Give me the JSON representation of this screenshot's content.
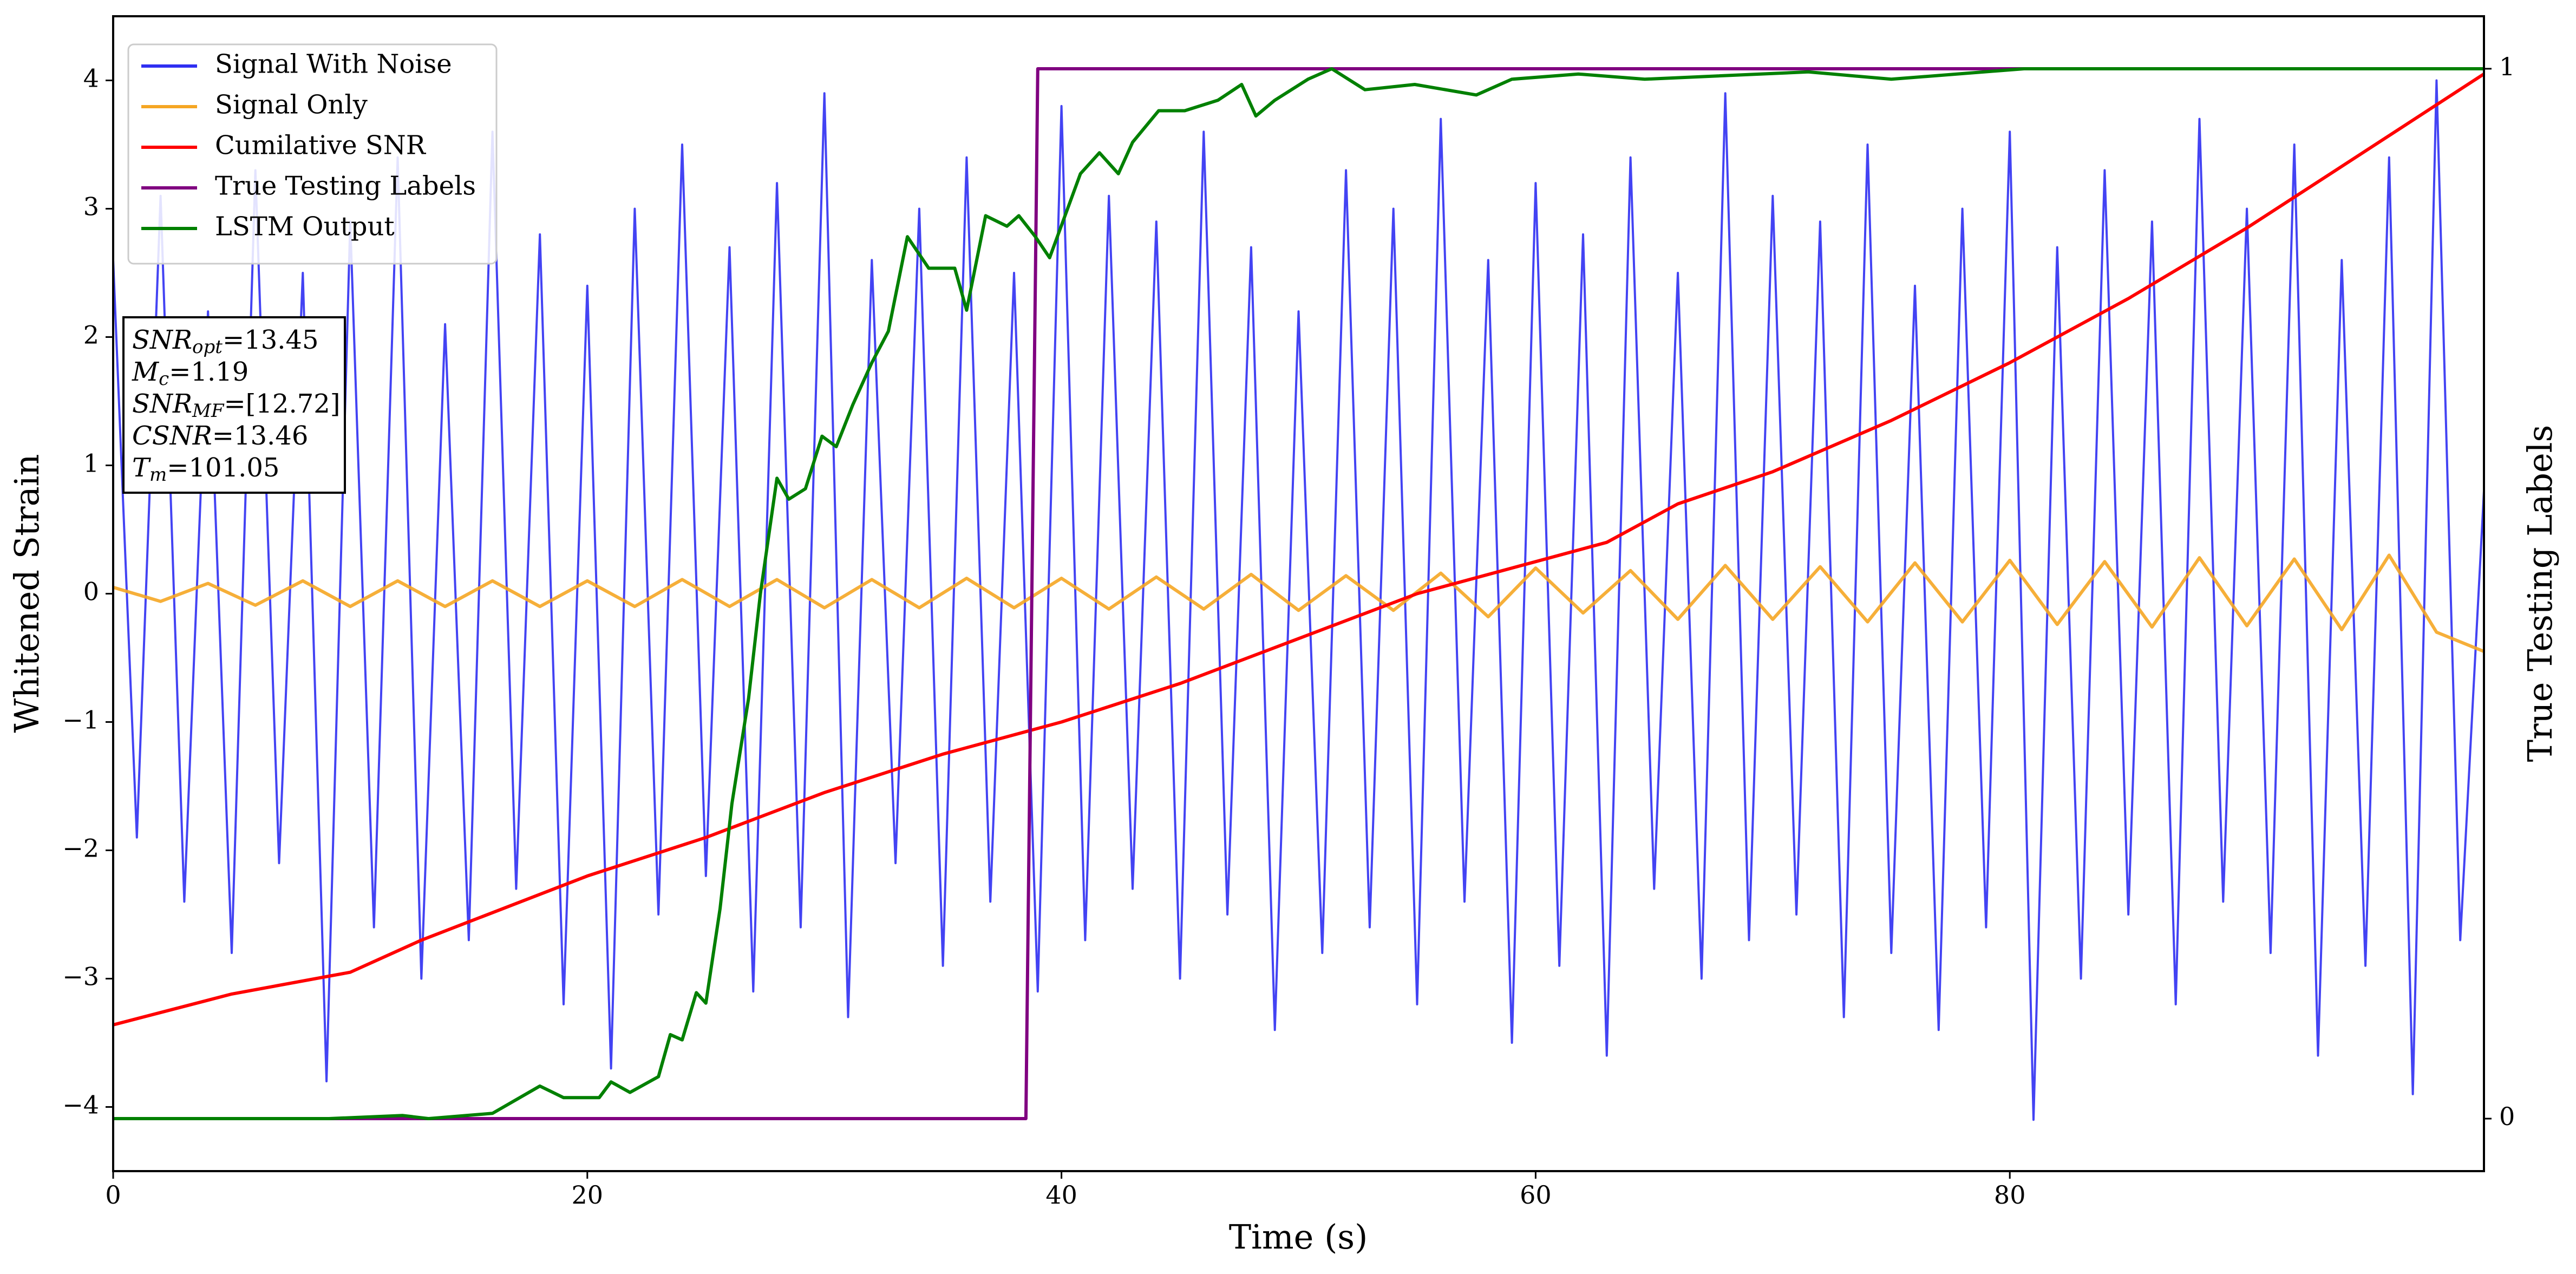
{
  "chart_data": {
    "type": "line",
    "xlabel": "Time (s)",
    "ylabel": "Whitened Strain",
    "y2label": "True Testing Labels",
    "xlim": [
      0,
      100
    ],
    "xticks": [
      0,
      20,
      40,
      60,
      80
    ],
    "ylim": [
      -4.5,
      4.5
    ],
    "yticks": [
      {
        "value": -4,
        "label": "−4"
      },
      {
        "value": -3,
        "label": "−3"
      },
      {
        "value": -2,
        "label": "−2"
      },
      {
        "value": -1,
        "label": "−1"
      },
      0,
      1,
      2,
      3,
      4
    ],
    "y2lim": [
      -0.05,
      1.05
    ],
    "y2ticks": [
      0,
      1
    ],
    "legend": "upper left",
    "annotations": [
      {
        "label": "SNR",
        "subscript": "opt",
        "text": "=13.45"
      },
      {
        "label": "M",
        "subscript": "c",
        "text": "=1.19"
      },
      {
        "label": "SNR",
        "subscript": "MF",
        "text": "=[12.72]"
      },
      {
        "label": "CSNR",
        "subscript": null,
        "text": "=13.46"
      },
      {
        "label": "T",
        "subscript": "m",
        "text": "=101.05"
      }
    ],
    "series": [
      {
        "name": "Signal With Noise",
        "color": "#2f2ff2",
        "axis": "y",
        "x": [
          0,
          1,
          2,
          3,
          4,
          5,
          6,
          7,
          8,
          9,
          10,
          11,
          12,
          13,
          14,
          15,
          16,
          17,
          18,
          19,
          20,
          21,
          22,
          23,
          24,
          25,
          26,
          27,
          28,
          29,
          30,
          31,
          32,
          33,
          34,
          35,
          36,
          37,
          38,
          39,
          40,
          41,
          42,
          43,
          44,
          45,
          46,
          47,
          48,
          49,
          50,
          51,
          52,
          53,
          54,
          55,
          56,
          57,
          58,
          59,
          60,
          61,
          62,
          63,
          64,
          65,
          66,
          67,
          68,
          69,
          70,
          71,
          72,
          73,
          74,
          75,
          76,
          77,
          78,
          79,
          80,
          81,
          82,
          83,
          84,
          85,
          86,
          87,
          88,
          89,
          90,
          91,
          92,
          93,
          94,
          95,
          96,
          97,
          98,
          99,
          100
        ],
        "values": [
          2.6,
          -1.9,
          3.1,
          -2.4,
          2.2,
          -2.8,
          3.3,
          -2.1,
          2.5,
          -3.8,
          2.9,
          -2.6,
          3.4,
          -3.0,
          2.1,
          -2.7,
          3.6,
          -2.3,
          2.8,
          -3.2,
          2.4,
          -3.7,
          3.0,
          -2.5,
          3.5,
          -2.2,
          2.7,
          -3.1,
          3.2,
          -2.6,
          3.9,
          -3.3,
          2.6,
          -2.1,
          3.0,
          -2.9,
          3.4,
          -2.4,
          2.5,
          -3.1,
          3.8,
          -2.7,
          3.1,
          -2.3,
          2.9,
          -3.0,
          3.6,
          -2.5,
          2.7,
          -3.4,
          2.2,
          -2.8,
          3.3,
          -2.6,
          3.0,
          -3.2,
          3.7,
          -2.4,
          2.6,
          -3.5,
          3.2,
          -2.9,
          2.8,
          -3.6,
          3.4,
          -2.3,
          2.5,
          -3.0,
          3.9,
          -2.7,
          3.1,
          -2.5,
          2.9,
          -3.3,
          3.5,
          -2.8,
          2.4,
          -3.4,
          3.0,
          -2.6,
          3.6,
          -4.1,
          2.7,
          -3.0,
          3.3,
          -2.5,
          2.9,
          -3.2,
          3.7,
          -2.4,
          3.0,
          -2.8,
          3.5,
          -3.6,
          2.6,
          -2.9,
          3.4,
          -3.9,
          4.0,
          -2.7,
          0.8
        ]
      },
      {
        "name": "Signal Only",
        "color": "#f5a623",
        "axis": "y",
        "x": [
          0,
          2,
          4,
          6,
          8,
          10,
          12,
          14,
          16,
          18,
          20,
          22,
          24,
          26,
          28,
          30,
          32,
          34,
          36,
          38,
          40,
          42,
          44,
          46,
          48,
          50,
          52,
          54,
          56,
          58,
          60,
          62,
          64,
          66,
          68,
          70,
          72,
          74,
          76,
          78,
          80,
          82,
          84,
          86,
          88,
          90,
          92,
          94,
          96,
          98,
          100
        ],
        "values": [
          0.05,
          -0.06,
          0.08,
          -0.09,
          0.1,
          -0.1,
          0.1,
          -0.1,
          0.1,
          -0.1,
          0.1,
          -0.1,
          0.11,
          -0.1,
          0.11,
          -0.11,
          0.11,
          -0.11,
          0.12,
          -0.11,
          0.12,
          -0.12,
          0.13,
          -0.12,
          0.15,
          -0.13,
          0.14,
          -0.13,
          0.16,
          -0.18,
          0.2,
          -0.15,
          0.18,
          -0.2,
          0.22,
          -0.2,
          0.21,
          -0.22,
          0.24,
          -0.22,
          0.26,
          -0.24,
          0.25,
          -0.26,
          0.28,
          -0.25,
          0.27,
          -0.28,
          0.3,
          -0.3,
          -0.45
        ]
      },
      {
        "name": "Cumilative SNR",
        "color": "#ff0000",
        "axis": "y",
        "x": [
          0,
          5,
          10,
          13,
          20,
          25,
          30,
          35,
          40,
          45,
          50,
          55,
          60,
          63,
          66,
          70,
          75,
          80,
          85,
          90,
          95,
          100
        ],
        "values": [
          -3.36,
          -3.12,
          -2.95,
          -2.7,
          -2.2,
          -1.9,
          -1.55,
          -1.25,
          -1.0,
          -0.7,
          -0.35,
          0.0,
          0.25,
          0.4,
          0.7,
          0.95,
          1.35,
          1.8,
          2.3,
          2.85,
          3.45,
          4.05
        ]
      },
      {
        "name": "True Testing Labels",
        "color": "#800080",
        "axis": "y2",
        "x": [
          0,
          38.5,
          39.0,
          100
        ],
        "values": [
          0,
          0,
          1,
          1
        ]
      },
      {
        "name": "LSTM Output",
        "color": "#008000",
        "axis": "y2",
        "x": [
          0,
          9.1,
          12.2,
          13.3,
          16,
          18,
          19,
          20.5,
          21,
          21.8,
          23,
          23.5,
          24,
          24.6,
          25,
          25.6,
          26.1,
          26.8,
          27.3,
          28,
          28.5,
          29.2,
          29.9,
          30.5,
          31.2,
          32,
          32.7,
          33.5,
          34.4,
          35.5,
          36,
          36.8,
          37.7,
          38.2,
          38.9,
          39.5,
          40.8,
          41.6,
          42.4,
          43,
          44.1,
          45.2,
          46.6,
          47.6,
          48.2,
          49,
          50.4,
          51.4,
          52.8,
          54.9,
          57.5,
          59,
          61.8,
          64.6,
          71.5,
          75,
          80.6,
          100
        ],
        "values": [
          0,
          0,
          0.003,
          0,
          0.005,
          0.031,
          0.02,
          0.02,
          0.035,
          0.025,
          0.04,
          0.08,
          0.075,
          0.12,
          0.11,
          0.2,
          0.3,
          0.4,
          0.5,
          0.61,
          0.59,
          0.6,
          0.65,
          0.64,
          0.68,
          0.72,
          0.75,
          0.84,
          0.81,
          0.81,
          0.77,
          0.86,
          0.85,
          0.86,
          0.84,
          0.82,
          0.9,
          0.92,
          0.9,
          0.93,
          0.96,
          0.96,
          0.97,
          0.985,
          0.955,
          0.97,
          0.99,
          1.0,
          0.98,
          0.985,
          0.975,
          0.99,
          0.995,
          0.99,
          0.997,
          0.99,
          1.0,
          1.0
        ]
      }
    ]
  }
}
